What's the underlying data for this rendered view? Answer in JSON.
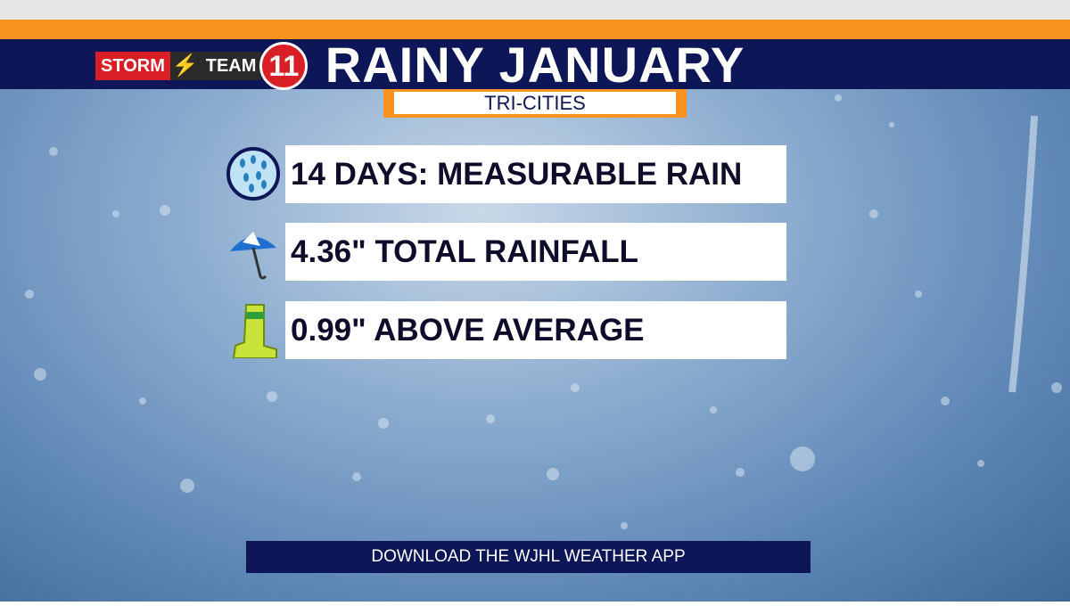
{
  "logo": {
    "storm": "STORM",
    "team": "TEAM",
    "number": "11"
  },
  "header": {
    "title": "RAINY JANUARY",
    "subtitle": "TRI-CITIES"
  },
  "stats": [
    "14 DAYS: MEASURABLE RAIN",
    "4.36\" TOTAL RAINFALL",
    "0.99\" ABOVE AVERAGE"
  ],
  "footer": "DOWNLOAD THE WJHL WEATHER APP"
}
